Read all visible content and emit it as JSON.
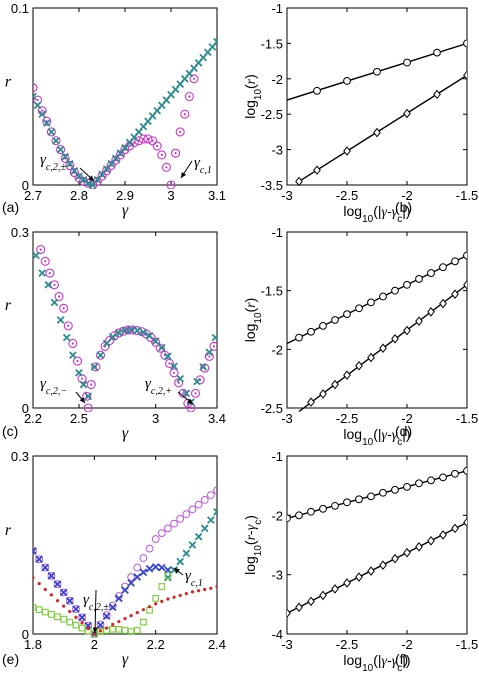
{
  "chart_data": [
    {
      "type": "scatter",
      "panel_label": "(a)",
      "xlabel": "γ",
      "ylabel": "r",
      "xlim": [
        2.7,
        3.1
      ],
      "ylim": [
        0,
        0.1
      ],
      "xticks": [
        "2.7",
        "2.8",
        "2.9",
        "3",
        "3.1"
      ],
      "yticks": [
        "0",
        "0.1"
      ],
      "annotations": [
        "γc,2,±",
        "γc,1"
      ],
      "series": [
        {
          "marker": "circle-dot",
          "color": "#cc33cc",
          "x": [
            2.7,
            2.71,
            2.72,
            2.73,
            2.74,
            2.75,
            2.76,
            2.77,
            2.78,
            2.79,
            2.8,
            2.81,
            2.82,
            2.83,
            2.84,
            2.85,
            2.86,
            2.87,
            2.88,
            2.89,
            2.9,
            2.91,
            2.92,
            2.93,
            2.94,
            2.95,
            2.96,
            2.97,
            2.98,
            2.99,
            3.0,
            3.01,
            3.02,
            3.03,
            3.04,
            3.05
          ],
          "y": [
            0.055,
            0.048,
            0.042,
            0.036,
            0.03,
            0.025,
            0.02,
            0.015,
            0.011,
            0.007,
            0.004,
            0.002,
            0.001,
            0.0,
            0.002,
            0.005,
            0.008,
            0.011,
            0.014,
            0.017,
            0.02,
            0.022,
            0.024,
            0.025,
            0.026,
            0.026,
            0.025,
            0.022,
            0.017,
            0.01,
            0.0,
            0.018,
            0.03,
            0.04,
            0.05,
            0.06
          ]
        },
        {
          "marker": "x",
          "color": "#2a8c8c",
          "x": [
            2.7,
            2.71,
            2.72,
            2.73,
            2.74,
            2.75,
            2.76,
            2.77,
            2.78,
            2.79,
            2.8,
            2.81,
            2.82,
            2.83,
            2.84,
            2.85,
            2.86,
            2.87,
            2.88,
            2.89,
            2.9,
            2.91,
            2.92,
            2.93,
            2.94,
            2.95,
            2.96,
            2.97,
            2.98,
            2.99,
            3.0,
            3.01,
            3.02,
            3.03,
            3.04,
            3.05,
            3.06,
            3.07,
            3.08,
            3.09,
            3.1
          ],
          "y": [
            0.05,
            0.045,
            0.04,
            0.035,
            0.03,
            0.025,
            0.02,
            0.016,
            0.012,
            0.008,
            0.005,
            0.003,
            0.001,
            0.0,
            0.003,
            0.006,
            0.009,
            0.012,
            0.015,
            0.018,
            0.021,
            0.024,
            0.027,
            0.03,
            0.033,
            0.036,
            0.039,
            0.042,
            0.045,
            0.048,
            0.051,
            0.054,
            0.057,
            0.06,
            0.063,
            0.066,
            0.069,
            0.072,
            0.075,
            0.078,
            0.081
          ]
        }
      ]
    },
    {
      "type": "line",
      "panel_label": "(b)",
      "xlabel": "log10(|γ-γc|)",
      "ylabel": "log10(r)",
      "xlim": [
        -3,
        -1.5
      ],
      "ylim": [
        -3.5,
        -1
      ],
      "xticks": [
        "-3",
        "-2.5",
        "-2",
        "-1.5"
      ],
      "yticks": [
        "-1",
        "-1.5",
        "-2",
        "-2.5",
        "-3",
        "-3.5"
      ],
      "series": [
        {
          "marker": "circle",
          "line_x": [
            -3,
            -1.5
          ],
          "line_y": [
            -2.3,
            -1.5
          ],
          "x": [
            -2.75,
            -2.5,
            -2.25,
            -2.0,
            -1.75,
            -1.5
          ],
          "y": [
            -2.17,
            -2.03,
            -1.9,
            -1.77,
            -1.63,
            -1.5
          ]
        },
        {
          "marker": "diamond",
          "line_x": [
            -2.9,
            -1.5
          ],
          "line_y": [
            -3.45,
            -1.95
          ],
          "x": [
            -2.9,
            -2.75,
            -2.5,
            -2.25,
            -2.0,
            -1.75,
            -1.5
          ],
          "y": [
            -3.45,
            -3.29,
            -3.02,
            -2.76,
            -2.49,
            -2.22,
            -1.95
          ]
        }
      ]
    },
    {
      "type": "scatter",
      "panel_label": "(c)",
      "xlabel": "γ",
      "ylabel": "r",
      "xlim": [
        2.2,
        3.4
      ],
      "ylim": [
        0,
        0.3
      ],
      "xticks": [
        "2.2",
        "2.5",
        "3",
        "3.4"
      ],
      "yticks": [
        "0",
        "0.3"
      ],
      "annotations": [
        "γc,2,−",
        "γc,2,+"
      ],
      "series": [
        {
          "marker": "circle-dot",
          "color": "#cc33cc",
          "x": [
            2.25,
            2.28,
            2.31,
            2.34,
            2.37,
            2.4,
            2.43,
            2.46,
            2.49,
            2.52,
            2.55,
            2.56,
            2.58,
            2.61,
            2.64,
            2.67,
            2.7,
            2.73,
            2.76,
            2.79,
            2.82,
            2.85,
            2.88,
            2.91,
            2.94,
            2.97,
            3.0,
            3.03,
            3.06,
            3.09,
            3.12,
            3.15,
            3.18,
            3.21,
            3.23,
            3.26,
            3.29,
            3.32,
            3.35,
            3.38
          ],
          "y": [
            0.27,
            0.25,
            0.23,
            0.21,
            0.19,
            0.17,
            0.14,
            0.11,
            0.08,
            0.05,
            0.02,
            0.0,
            0.04,
            0.07,
            0.09,
            0.105,
            0.115,
            0.123,
            0.128,
            0.131,
            0.133,
            0.133,
            0.132,
            0.13,
            0.126,
            0.12,
            0.112,
            0.102,
            0.09,
            0.076,
            0.06,
            0.043,
            0.025,
            0.008,
            0.0,
            0.025,
            0.048,
            0.068,
            0.088,
            0.105
          ]
        },
        {
          "marker": "x",
          "color": "#2a8c8c",
          "x": [
            2.22,
            2.26,
            2.3,
            2.34,
            2.38,
            2.42,
            2.46,
            2.5,
            2.53,
            2.56,
            2.6,
            2.64,
            2.68,
            2.72,
            2.76,
            2.8,
            2.84,
            2.88,
            2.92,
            2.96,
            3.0,
            3.04,
            3.08,
            3.12,
            3.16,
            3.2,
            3.23,
            3.27,
            3.31,
            3.35,
            3.39
          ],
          "y": [
            0.26,
            0.23,
            0.21,
            0.18,
            0.15,
            0.12,
            0.09,
            0.06,
            0.04,
            0.02,
            0.07,
            0.09,
            0.11,
            0.121,
            0.128,
            0.132,
            0.133,
            0.132,
            0.129,
            0.123,
            0.114,
            0.103,
            0.088,
            0.071,
            0.05,
            0.025,
            0.01,
            0.045,
            0.07,
            0.095,
            0.12
          ]
        }
      ]
    },
    {
      "type": "line",
      "panel_label": "(d)",
      "xlabel": "log10(|γ-γc|)",
      "ylabel": "log10(r)",
      "xlim": [
        -3,
        -1.5
      ],
      "ylim": [
        -2.5,
        -1
      ],
      "xticks": [
        "-3",
        "-2.5",
        "-2",
        "-1.5"
      ],
      "yticks": [
        "-1",
        "-1.5",
        "-2",
        "-2.5"
      ],
      "series": [
        {
          "marker": "circle",
          "line_x": [
            -3,
            -1.5
          ],
          "line_y": [
            -1.95,
            -1.2
          ],
          "x": [
            -2.9,
            -2.8,
            -2.7,
            -2.6,
            -2.5,
            -2.4,
            -2.3,
            -2.2,
            -2.1,
            -2.0,
            -1.9,
            -1.8,
            -1.7,
            -1.6,
            -1.5
          ],
          "y": [
            -1.9,
            -1.85,
            -1.8,
            -1.75,
            -1.7,
            -1.65,
            -1.6,
            -1.55,
            -1.5,
            -1.45,
            -1.4,
            -1.35,
            -1.3,
            -1.25,
            -1.2
          ]
        },
        {
          "marker": "diamond",
          "line_x": [
            -2.9,
            -1.5
          ],
          "line_y": [
            -2.53,
            -1.45
          ],
          "x": [
            -2.8,
            -2.7,
            -2.6,
            -2.5,
            -2.4,
            -2.3,
            -2.2,
            -2.1,
            -2.0,
            -1.9,
            -1.8,
            -1.7,
            -1.6,
            -1.5
          ],
          "y": [
            -2.45,
            -2.38,
            -2.3,
            -2.22,
            -2.14,
            -2.07,
            -1.99,
            -1.91,
            -1.84,
            -1.76,
            -1.68,
            -1.61,
            -1.53,
            -1.45
          ]
        }
      ]
    },
    {
      "type": "scatter",
      "panel_label": "(e)",
      "xlabel": "γ",
      "ylabel": "r",
      "xlim": [
        1.8,
        2.4
      ],
      "ylim": [
        0,
        0.3
      ],
      "xticks": [
        "1.8",
        "2",
        "2.2",
        "2.4"
      ],
      "yticks": [
        "0",
        "0.3"
      ],
      "annotations": [
        "γc,2,±",
        "γc,1"
      ],
      "series": [
        {
          "marker": "circle",
          "color": "#bb55dd",
          "x": [
            1.8,
            1.82,
            1.84,
            1.86,
            1.88,
            1.9,
            1.92,
            1.94,
            1.96,
            1.98,
            2.0,
            2.02,
            2.04,
            2.06,
            2.08,
            2.1,
            2.12,
            2.14,
            2.16,
            2.18,
            2.2,
            2.22,
            2.24,
            2.26,
            2.28,
            2.3,
            2.32,
            2.34,
            2.36,
            2.38,
            2.4
          ],
          "y": [
            0.14,
            0.126,
            0.112,
            0.098,
            0.084,
            0.07,
            0.056,
            0.042,
            0.028,
            0.014,
            0.0,
            0.016,
            0.032,
            0.048,
            0.064,
            0.08,
            0.096,
            0.112,
            0.128,
            0.144,
            0.16,
            0.17,
            0.178,
            0.186,
            0.194,
            0.202,
            0.21,
            0.218,
            0.226,
            0.234,
            0.242
          ]
        },
        {
          "marker": "x",
          "color": "#3344cc",
          "x": [
            1.8,
            1.82,
            1.84,
            1.86,
            1.88,
            1.9,
            1.92,
            1.94,
            1.96,
            1.98,
            2.0,
            2.02,
            2.04,
            2.06,
            2.08,
            2.1,
            2.12,
            2.14,
            2.16,
            2.18,
            2.2,
            2.22,
            2.24
          ],
          "y": [
            0.14,
            0.126,
            0.112,
            0.098,
            0.084,
            0.07,
            0.056,
            0.042,
            0.028,
            0.014,
            0.0,
            0.015,
            0.03,
            0.045,
            0.06,
            0.074,
            0.086,
            0.096,
            0.104,
            0.11,
            0.113,
            0.112,
            0.108
          ]
        },
        {
          "marker": "x",
          "color": "#2a8c8c",
          "x": [
            2.24,
            2.26,
            2.28,
            2.3,
            2.32,
            2.34,
            2.36,
            2.38,
            2.4
          ],
          "y": [
            0.095,
            0.108,
            0.122,
            0.136,
            0.15,
            0.164,
            0.178,
            0.192,
            0.206
          ]
        },
        {
          "marker": "square",
          "color": "#77cc33",
          "x": [
            1.8,
            1.82,
            1.84,
            1.86,
            1.88,
            1.9,
            1.92,
            1.94,
            1.96,
            1.98,
            2.0,
            2.02,
            2.04,
            2.06,
            2.08,
            2.1,
            2.12,
            2.14,
            2.16,
            2.18,
            2.2,
            2.22,
            2.24
          ],
          "y": [
            0.045,
            0.041,
            0.037,
            0.033,
            0.029,
            0.025,
            0.02,
            0.015,
            0.01,
            0.005,
            0.0,
            0.004,
            0.006,
            0.008,
            0.008,
            0.006,
            0.004,
            0.006,
            0.02,
            0.04,
            0.06,
            0.08,
            0.098
          ]
        },
        {
          "marker": "dot",
          "color": "#dd2222",
          "x": [
            1.8,
            1.82,
            1.84,
            1.86,
            1.88,
            1.9,
            1.92,
            1.94,
            1.96,
            1.98,
            2.0,
            2.02,
            2.04,
            2.06,
            2.08,
            2.1,
            2.12,
            2.14,
            2.16,
            2.18,
            2.2,
            2.22,
            2.24,
            2.26,
            2.28,
            2.3,
            2.32,
            2.34,
            2.36,
            2.38,
            2.4
          ],
          "y": [
            0.095,
            0.085,
            0.075,
            0.066,
            0.056,
            0.047,
            0.038,
            0.028,
            0.019,
            0.009,
            0.0,
            0.005,
            0.01,
            0.016,
            0.021,
            0.026,
            0.031,
            0.036,
            0.041,
            0.046,
            0.051,
            0.055,
            0.059,
            0.062,
            0.065,
            0.068,
            0.071,
            0.073,
            0.075,
            0.077,
            0.08
          ]
        }
      ]
    },
    {
      "type": "line",
      "panel_label": "(f)",
      "xlabel": "log10(|γ-γc|)",
      "ylabel": "log10(r-γc)",
      "xlim": [
        -3,
        -1.5
      ],
      "ylim": [
        -4,
        -1
      ],
      "xticks": [
        "-3",
        "-2.5",
        "-2",
        "-1.5"
      ],
      "yticks": [
        "-1",
        "-2",
        "-3",
        "-4"
      ],
      "series": [
        {
          "marker": "circle",
          "line_x": [
            -3,
            -1.5
          ],
          "line_y": [
            -2.05,
            -1.25
          ],
          "x": [
            -3.0,
            -2.9,
            -2.8,
            -2.7,
            -2.6,
            -2.5,
            -2.4,
            -2.3,
            -2.2,
            -2.1,
            -2.0,
            -1.9,
            -1.8,
            -1.7,
            -1.6,
            -1.5
          ],
          "y": [
            -2.05,
            -2.0,
            -1.94,
            -1.89,
            -1.84,
            -1.78,
            -1.73,
            -1.68,
            -1.62,
            -1.57,
            -1.52,
            -1.46,
            -1.41,
            -1.36,
            -1.3,
            -1.25
          ]
        },
        {
          "marker": "diamond",
          "line_x": [
            -3,
            -1.5
          ],
          "line_y": [
            -3.65,
            -2.12
          ],
          "x": [
            -3.0,
            -2.9,
            -2.8,
            -2.7,
            -2.6,
            -2.5,
            -2.4,
            -2.3,
            -2.2,
            -2.1,
            -2.0,
            -1.9,
            -1.8,
            -1.7,
            -1.6,
            -1.5
          ],
          "y": [
            -3.65,
            -3.55,
            -3.45,
            -3.35,
            -3.24,
            -3.14,
            -3.04,
            -2.94,
            -2.84,
            -2.73,
            -2.63,
            -2.53,
            -2.43,
            -2.33,
            -2.22,
            -2.12
          ]
        }
      ]
    }
  ]
}
